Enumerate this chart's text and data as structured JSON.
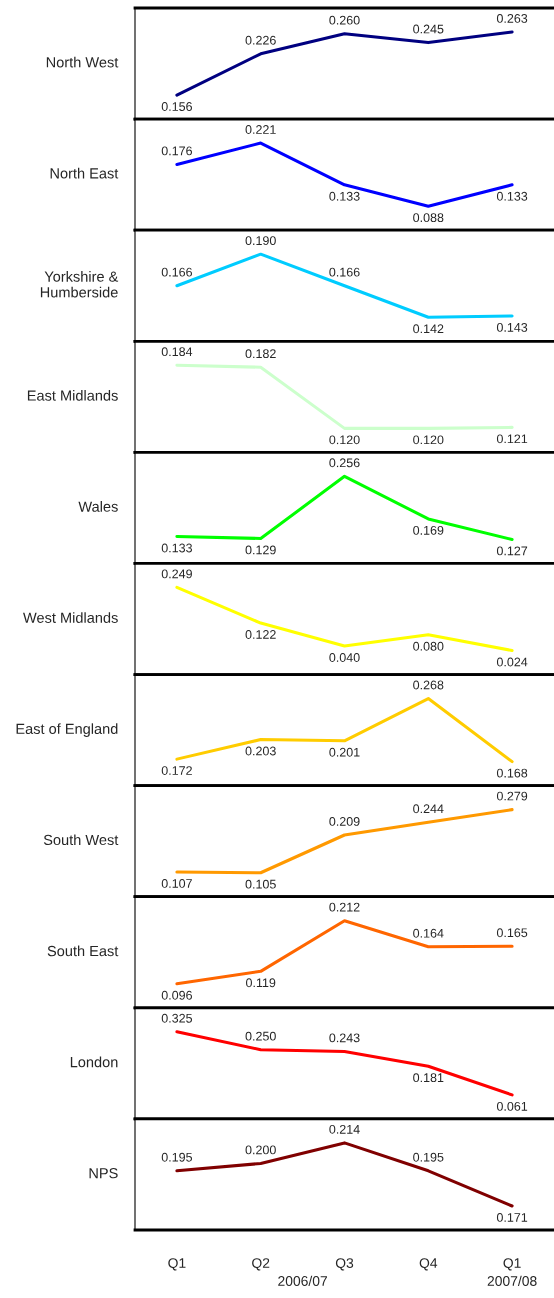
{
  "chart_data": [
    {
      "type": "line",
      "ylabel": "North West",
      "categories": [
        null,
        null,
        null,
        null,
        null
      ],
      "color": "#000080",
      "values": [
        0.156,
        0.226,
        0.26,
        0.245,
        0.263
      ],
      "value_labels": [
        "0.156",
        "0.226",
        "0.260",
        "0.245",
        "0.263"
      ],
      "marker": "none",
      "tick_labels": false
    },
    {
      "type": "line",
      "ylabel": "North East",
      "categories": [
        null,
        null,
        null,
        null,
        null
      ],
      "color": "#0000ff",
      "values": [
        0.176,
        0.221,
        0.133,
        0.088,
        0.133
      ],
      "value_labels": [
        "0.176",
        "0.221",
        "0.133",
        "0.088",
        "0.133"
      ],
      "marker": "none",
      "tick_labels": false
    },
    {
      "type": "line",
      "ylabel": "Yorkshire &\nHumberside",
      "categories": [
        null,
        null,
        null,
        null,
        null
      ],
      "color": "#00ccff",
      "values": [
        0.166,
        0.19,
        0.166,
        0.142,
        0.143
      ],
      "value_labels": [
        "0.166",
        "0.190",
        "0.166",
        "0.142",
        "0.143"
      ],
      "marker": "none",
      "tick_labels": false
    },
    {
      "type": "line",
      "ylabel": "East Midlands",
      "categories": [
        null,
        null,
        null,
        null,
        null
      ],
      "color": "#ccffcc",
      "values": [
        0.184,
        0.182,
        0.12,
        0.12,
        0.121
      ],
      "value_labels": [
        "0.184",
        "0.182",
        "0.120",
        "0.120",
        "0.121"
      ],
      "marker": "none",
      "tick_labels": false
    },
    {
      "type": "line",
      "ylabel": "Wales",
      "categories": [
        null,
        null,
        null,
        null,
        null
      ],
      "color": "#00ff00",
      "values": [
        0.133,
        0.129,
        0.256,
        0.169,
        0.127
      ],
      "value_labels": [
        "0.133",
        "0.129",
        "0.256",
        "0.169",
        "0.127"
      ],
      "marker": "none",
      "tick_labels": false
    },
    {
      "type": "line",
      "ylabel": "West Midlands",
      "categories": [
        null,
        null,
        null,
        null,
        null
      ],
      "color": "#ffff00",
      "values": [
        0.249,
        0.122,
        0.04,
        0.08,
        0.024
      ],
      "value_labels": [
        "0.249",
        "0.122",
        "0.040",
        "0.080",
        "0.024"
      ],
      "marker": "none",
      "tick_labels": false
    },
    {
      "type": "line",
      "ylabel": "East of England",
      "categories": [
        null,
        null,
        null,
        null,
        null
      ],
      "color": "#ffcc00",
      "values": [
        0.172,
        0.203,
        0.201,
        0.268,
        0.168
      ],
      "value_labels": [
        "0.172",
        "0.203",
        "0.201",
        "0.268",
        "0.168"
      ],
      "marker": "none",
      "tick_labels": false
    },
    {
      "type": "line",
      "ylabel": "South West",
      "categories": [
        null,
        null,
        null,
        null,
        null
      ],
      "color": "#ff9900",
      "values": [
        0.107,
        0.105,
        0.209,
        0.244,
        0.279
      ],
      "value_labels": [
        "0.107",
        "0.105",
        "0.209",
        "0.244",
        "0.279"
      ],
      "marker": "none",
      "tick_labels": false
    },
    {
      "type": "line",
      "ylabel": "South East",
      "categories": [
        null,
        null,
        null,
        null,
        null
      ],
      "color": "#ff6600",
      "values": [
        0.096,
        0.119,
        0.212,
        0.164,
        0.165
      ],
      "value_labels": [
        "0.096",
        "0.119",
        "0.212",
        "0.164",
        "0.165"
      ],
      "marker": "none",
      "tick_labels": false
    },
    {
      "type": "line",
      "ylabel": "London",
      "categories": [
        null,
        null,
        null,
        null,
        null
      ],
      "color": "#ff0000",
      "values": [
        0.325,
        0.25,
        0.243,
        0.181,
        0.061
      ],
      "value_labels": [
        "0.325",
        "0.250",
        "0.243",
        "0.181",
        "0.061"
      ],
      "marker": "none",
      "tick_labels": false
    },
    {
      "type": "line",
      "ylabel": "NPS",
      "categories": [
        "Q1",
        "Q2",
        "Q3",
        "Q4",
        "Q1"
      ],
      "color": "#800000",
      "values": [
        0.195,
        0.2,
        0.214,
        0.195,
        0.171
      ],
      "value_labels": [
        "0.195",
        "0.200",
        "0.214",
        "0.195",
        "0.171"
      ],
      "marker": "none",
      "tick_labels": "x",
      "annotations": [
        "2006/07",
        "2007/08"
      ]
    }
  ]
}
